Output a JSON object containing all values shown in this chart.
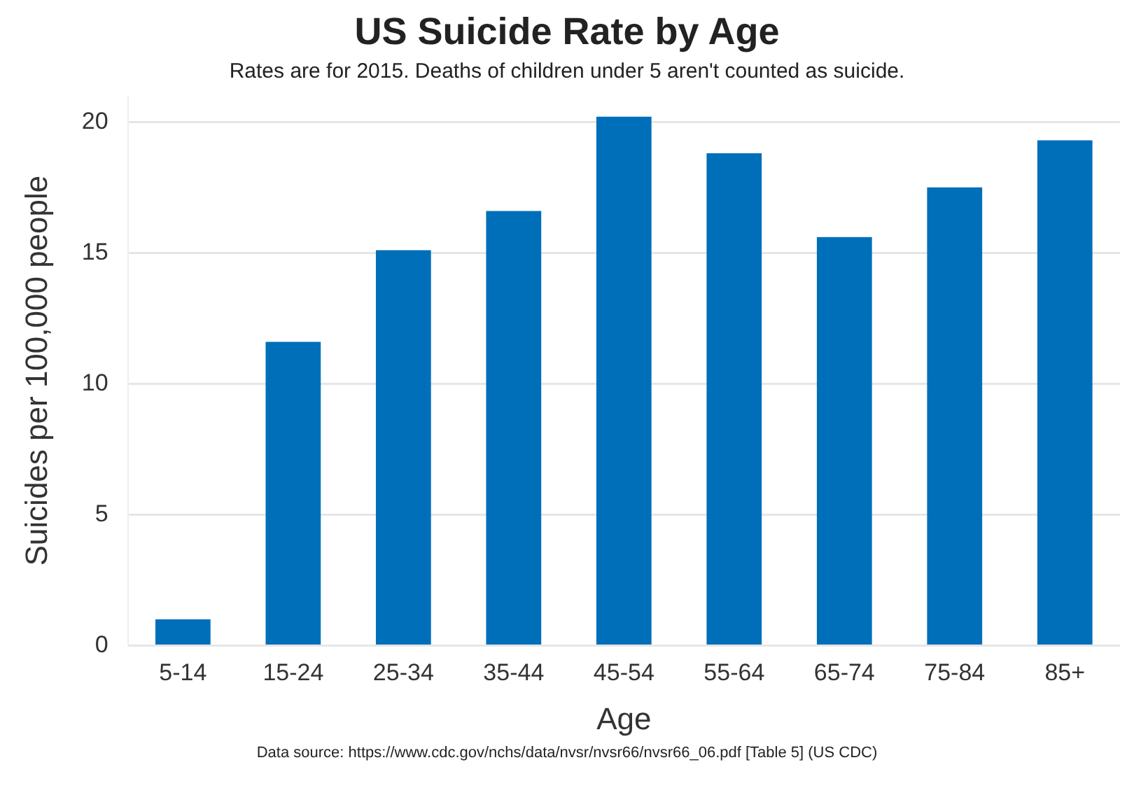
{
  "chart_data": {
    "type": "bar",
    "title": "US Suicide Rate by Age",
    "subtitle": "Rates are for 2015. Deaths of children under 5 aren't counted as suicide.",
    "xlabel": "Age",
    "ylabel": "Suicides per 100,000 people",
    "categories": [
      "5-14",
      "15-24",
      "25-34",
      "35-44",
      "45-54",
      "55-64",
      "65-74",
      "75-84",
      "85+"
    ],
    "values": [
      1.0,
      11.6,
      15.1,
      16.6,
      20.2,
      18.8,
      15.6,
      17.5,
      19.3
    ],
    "color": "#006fb9",
    "ylim": [
      0,
      21
    ],
    "yticks": [
      0,
      5,
      10,
      15,
      20
    ],
    "grid": "y",
    "legend": false,
    "annotations": [
      "Data source: https://www.cdc.gov/nchs/data/nvsr/nvsr66/nvsr66_06.pdf [Table 5] (US CDC)"
    ]
  }
}
